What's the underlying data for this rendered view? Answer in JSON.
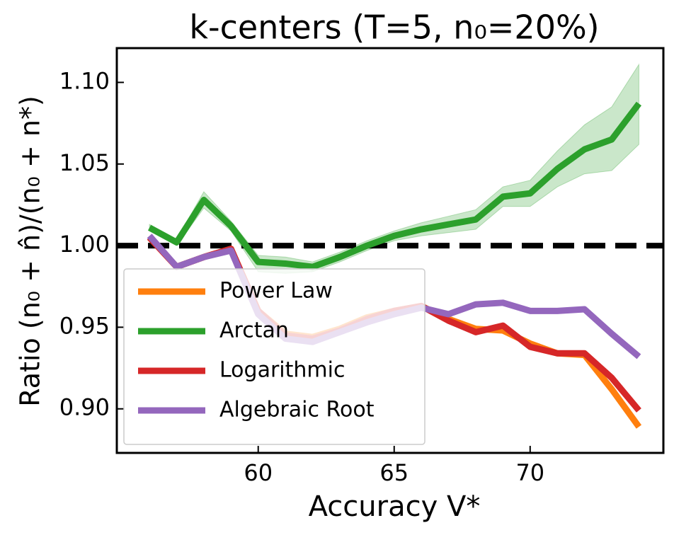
{
  "chart_data": {
    "type": "line",
    "title": "k-centers (T=5, n₀=20%)",
    "x_label": "Accuracy V*",
    "y_label": "Ratio (n₀ + n̂)/(n₀ + n*)",
    "x": [
      56,
      57,
      58,
      59,
      60,
      61,
      62,
      63,
      64,
      65,
      66,
      67,
      68,
      69,
      70,
      71,
      72,
      73,
      74
    ],
    "series": [
      {
        "name": "Power Law",
        "color": "#ff7f0e",
        "values": [
          1.005,
          0.987,
          0.993,
          0.998,
          0.96,
          0.946,
          0.944,
          0.949,
          0.956,
          0.96,
          0.963,
          0.955,
          0.949,
          0.948,
          0.94,
          0.934,
          0.933,
          0.912,
          0.889
        ]
      },
      {
        "name": "Arctan",
        "color": "#2ca02c",
        "values": [
          1.011,
          1.002,
          1.028,
          1.012,
          0.99,
          0.989,
          0.987,
          0.993,
          1.0,
          1.006,
          1.01,
          1.013,
          1.016,
          1.03,
          1.032,
          1.047,
          1.059,
          1.065,
          1.087
        ],
        "upper": [
          1.013,
          1.004,
          1.033,
          1.015,
          0.994,
          0.993,
          0.99,
          0.996,
          1.003,
          1.009,
          1.014,
          1.018,
          1.022,
          1.036,
          1.04,
          1.058,
          1.074,
          1.085,
          1.111
        ],
        "lower": [
          1.009,
          1.0,
          1.023,
          1.009,
          0.984,
          0.983,
          0.984,
          0.99,
          0.997,
          1.003,
          1.006,
          1.008,
          1.01,
          1.024,
          1.024,
          1.036,
          1.044,
          1.046,
          1.062
        ]
      },
      {
        "name": "Logarithmic",
        "color": "#d62728",
        "values": [
          1.005,
          0.987,
          0.993,
          0.998,
          0.96,
          0.945,
          0.943,
          0.948,
          0.955,
          0.96,
          0.963,
          0.954,
          0.947,
          0.951,
          0.938,
          0.934,
          0.934,
          0.919,
          0.899
        ]
      },
      {
        "name": "Algebraic Root",
        "color": "#9467bd",
        "values": [
          1.006,
          0.987,
          0.993,
          0.997,
          0.958,
          0.943,
          0.941,
          0.947,
          0.953,
          0.958,
          0.962,
          0.958,
          0.964,
          0.965,
          0.96,
          0.96,
          0.961,
          0.946,
          0.932
        ]
      }
    ],
    "hline": 1.0,
    "xlim": [
      54.8,
      74.9
    ],
    "ylim": [
      0.873,
      1.121
    ],
    "xticks": [
      60,
      65,
      70
    ],
    "yticks": [
      {
        "value": 0.9,
        "label": "0.90"
      },
      0.95,
      {
        "value": 1.0,
        "label": "1.00"
      },
      1.05,
      {
        "value": 1.1,
        "label": "1.10"
      }
    ],
    "legend": "lower left"
  }
}
